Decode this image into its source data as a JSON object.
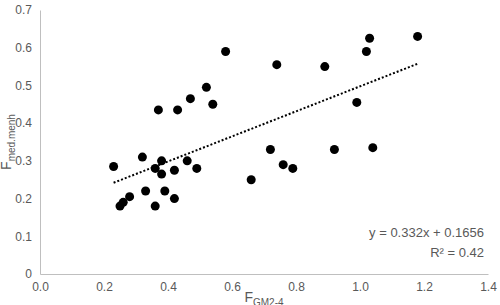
{
  "chart_data": {
    "type": "scatter",
    "xlabel": "FGM2-4",
    "ylabel": "Fmed.menh",
    "x": [
      0.23,
      0.25,
      0.26,
      0.28,
      0.32,
      0.33,
      0.36,
      0.36,
      0.37,
      0.38,
      0.38,
      0.39,
      0.42,
      0.42,
      0.43,
      0.46,
      0.47,
      0.49,
      0.52,
      0.54,
      0.58,
      0.66,
      0.72,
      0.74,
      0.76,
      0.79,
      0.89,
      0.92,
      0.99,
      1.02,
      1.03,
      1.04,
      1.18
    ],
    "values": [
      0.285,
      0.18,
      0.19,
      0.205,
      0.31,
      0.22,
      0.28,
      0.18,
      0.435,
      0.265,
      0.3,
      0.22,
      0.275,
      0.2,
      0.435,
      0.3,
      0.465,
      0.28,
      0.495,
      0.45,
      0.59,
      0.25,
      0.33,
      0.555,
      0.29,
      0.28,
      0.55,
      0.33,
      0.455,
      0.59,
      0.625,
      0.335,
      0.63
    ],
    "color": "#000000",
    "marker": "circle",
    "trendline": {
      "slope": 0.332,
      "intercept": 0.1656,
      "line_style": "dotted"
    },
    "annotations": [
      "y = 0.332x + 0.1656",
      "R² = 0.42"
    ],
    "xlim": [
      0,
      1.4
    ],
    "xticks": [
      {
        "value": 0,
        "label": "0.0"
      },
      0.2,
      0.4,
      0.6,
      0.8,
      {
        "value": 1,
        "label": "1.0"
      },
      1.2,
      1.4
    ],
    "ylim": [
      0,
      0.7
    ],
    "yticks": [
      0,
      0.1,
      0.2,
      0.3,
      0.4,
      0.5,
      0.6,
      0.7
    ],
    "grid": false
  }
}
